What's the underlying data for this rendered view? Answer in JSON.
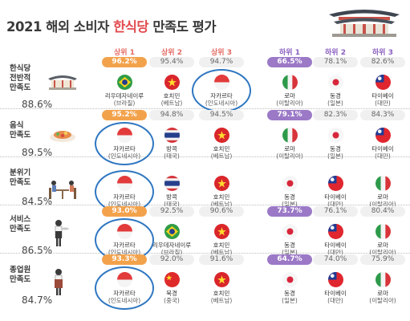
{
  "title": {
    "pre": "2021 해외 소비자 ",
    "highlight": "한식당",
    "post": " 만족도 평가"
  },
  "columns": [
    "상위 1",
    "상위 2",
    "상위 3",
    "하위 1",
    "하위 2",
    "하위 3"
  ],
  "chart_data": {
    "type": "table",
    "title": "2021 해외 소비자 한식당 만족도 평가",
    "columns": [
      "상위 1",
      "상위 2",
      "상위 3",
      "하위 1",
      "하위 2",
      "하위 3"
    ],
    "rows": [
      {
        "category": [
          "한식당",
          "전반적",
          "만족도"
        ],
        "score": "88.6%",
        "cells": [
          {
            "pct": "96.2%",
            "value": 96.2,
            "city": "리우데자네이루",
            "country": "(브라질)",
            "flag": "brazil"
          },
          {
            "pct": "95.4%",
            "value": 95.4,
            "city": "호치민",
            "country": "(베트남)",
            "flag": "vietnam"
          },
          {
            "pct": "94.7%",
            "value": 94.7,
            "city": "자카르타",
            "country": "(인도네시아)",
            "flag": "indonesia"
          },
          {
            "pct": "66.5%",
            "value": 66.5,
            "city": "로마",
            "country": "(이탈리아)",
            "flag": "italy"
          },
          {
            "pct": "78.1%",
            "value": 78.1,
            "city": "동경",
            "country": "(일본)",
            "flag": "japan"
          },
          {
            "pct": "82.6%",
            "value": 82.6,
            "city": "타이베이",
            "country": "(대만)",
            "flag": "taiwan"
          }
        ]
      },
      {
        "category": [
          "음식",
          "만족도"
        ],
        "score": "89.5%",
        "cells": [
          {
            "pct": "95.2%",
            "value": 95.2,
            "city": "자카르타",
            "country": "(인도네시아)",
            "flag": "indonesia"
          },
          {
            "pct": "94.8%",
            "value": 94.8,
            "city": "방콕",
            "country": "(태국)",
            "flag": "thailand"
          },
          {
            "pct": "94.5%",
            "value": 94.5,
            "city": "호치민",
            "country": "(베트남)",
            "flag": "vietnam"
          },
          {
            "pct": "79.1%",
            "value": 79.1,
            "city": "로마",
            "country": "(이탈리아)",
            "flag": "italy"
          },
          {
            "pct": "82.3%",
            "value": 82.3,
            "city": "동경",
            "country": "(일본)",
            "flag": "japan"
          },
          {
            "pct": "84.3%",
            "value": 84.3,
            "city": "타이베이",
            "country": "(대만)",
            "flag": "taiwan"
          }
        ]
      },
      {
        "category": [
          "분위기",
          "만족도"
        ],
        "score": "84.5%",
        "cells": [
          {
            "pct": "",
            "value": null,
            "city": "자카르타",
            "country": "(인도네시아)",
            "flag": "indonesia"
          },
          {
            "pct": "",
            "value": null,
            "city": "방콕",
            "country": "(태국)",
            "flag": "thailand"
          },
          {
            "pct": "",
            "value": null,
            "city": "호치민",
            "country": "(베트남)",
            "flag": "vietnam"
          },
          {
            "pct": "",
            "value": null,
            "city": "동경",
            "country": "(일본)",
            "flag": "japan"
          },
          {
            "pct": "",
            "value": null,
            "city": "타이베이",
            "country": "(대만)",
            "flag": "taiwan"
          },
          {
            "pct": "",
            "value": null,
            "city": "로마",
            "country": "(이탈리아)",
            "flag": "italy"
          }
        ]
      },
      {
        "category": [
          "서비스",
          "만족도"
        ],
        "score": "86.5%",
        "cells": [
          {
            "pct": "93.0%",
            "value": 93.0,
            "city": "자카르타",
            "country": "(인도네시아)",
            "flag": "indonesia"
          },
          {
            "pct": "92.5%",
            "value": 92.5,
            "city": "리우데자네이루",
            "country": "(브라질)",
            "flag": "brazil"
          },
          {
            "pct": "90.6%",
            "value": 90.6,
            "city": "호치민",
            "country": "(베트남)",
            "flag": "vietnam"
          },
          {
            "pct": "73.7%",
            "value": 73.7,
            "city": "동경",
            "country": "(일본)",
            "flag": "japan"
          },
          {
            "pct": "76.1%",
            "value": 76.1,
            "city": "타이베이",
            "country": "(대만)",
            "flag": "taiwan"
          },
          {
            "pct": "80.4%",
            "value": 80.4,
            "city": "로마",
            "country": "(이탈리아)",
            "flag": "italy"
          }
        ]
      },
      {
        "category": [
          "종업원",
          "만족도"
        ],
        "score": "84.7%",
        "cells": [
          {
            "pct": "93.3%",
            "value": 93.3,
            "city": "자카르타",
            "country": "(인도네시아)",
            "flag": "indonesia"
          },
          {
            "pct": "92.0%",
            "value": 92.0,
            "city": "북경",
            "country": "(중국)",
            "flag": "china"
          },
          {
            "pct": "91.6%",
            "value": 91.6,
            "city": "호치민",
            "country": "(베트남)",
            "flag": "vietnam"
          },
          {
            "pct": "64.7%",
            "value": 64.7,
            "city": "동경",
            "country": "(일본)",
            "flag": "japan"
          },
          {
            "pct": "74.0%",
            "value": 74.0,
            "city": "타이베이",
            "country": "(대만)",
            "flag": "taiwan"
          },
          {
            "pct": "75.9%",
            "value": 75.9,
            "city": "로마",
            "country": "(이탈리아)",
            "flag": "italy"
          }
        ]
      }
    ],
    "highlighted_city": "자카르타"
  },
  "colors": {
    "top1": "#f3a24c",
    "bottom1": "#9b79c7",
    "ring": "#2f77c1",
    "title_highlight": "#e24a4e"
  }
}
